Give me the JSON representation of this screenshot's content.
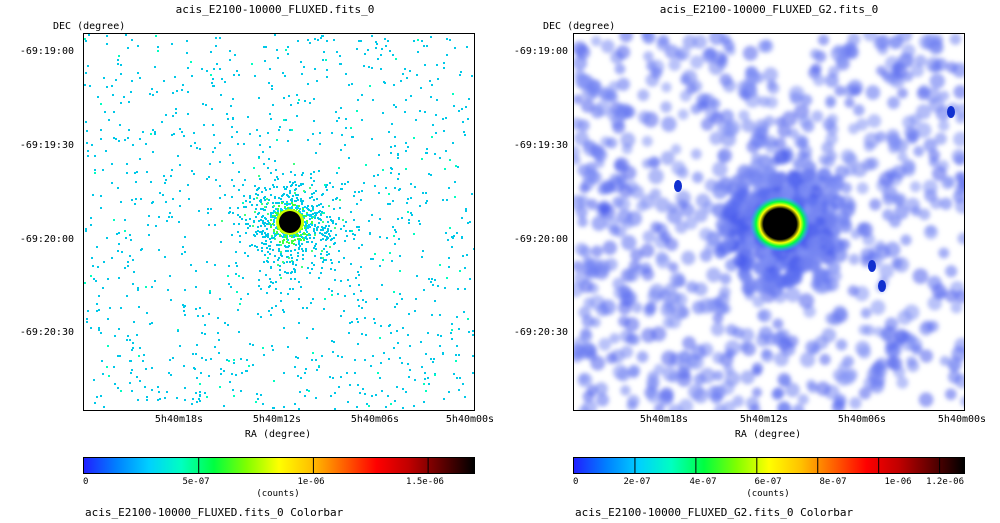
{
  "panels": [
    {
      "id": "left",
      "title": "acis_E2100-10000_FLUXED.fits_0",
      "dec_label": "DEC  (degree)",
      "ra_label": "RA  (degree)",
      "y_ticks": [
        "-69:19:00",
        "-69:19:30",
        "-69:20:00",
        "-69:20:30"
      ],
      "x_ticks": [
        "5h40m18s",
        "5h40m12s",
        "5h40m06s",
        "5h40m00s"
      ],
      "image_style": "sparse-counts",
      "colorbar": {
        "ticks": [
          "0",
          "5e-07",
          "1e-06",
          "1.5e-06"
        ],
        "unit_label": "(counts)",
        "caption": "acis_E2100-10000_FLUXED.fits_0 Colorbar"
      }
    },
    {
      "id": "right",
      "title": "acis_E2100-10000_FLUXED_G2.fits_0",
      "dec_label": "DEC  (degree)",
      "ra_label": "RA  (degree)",
      "y_ticks": [
        "-69:19:00",
        "-69:19:30",
        "-69:20:00",
        "-69:20:30"
      ],
      "x_ticks": [
        "5h40m18s",
        "5h40m12s",
        "5h40m06s",
        "5h40m00s"
      ],
      "image_style": "smoothed",
      "colorbar": {
        "ticks": [
          "0",
          "2e-07",
          "4e-07",
          "6e-07",
          "8e-07",
          "1e-06",
          "1.2e-06"
        ],
        "unit_label": "(counts)",
        "caption": "acis_E2100-10000_FLUXED_G2.fits_0 Colorbar"
      }
    }
  ],
  "colormap": [
    "#2020ff",
    "#0080ff",
    "#00d0ff",
    "#00ffc0",
    "#00ff40",
    "#80ff00",
    "#ffff00",
    "#ffc000",
    "#ff6000",
    "#ff0000",
    "#c00000",
    "#600000",
    "#000000"
  ]
}
